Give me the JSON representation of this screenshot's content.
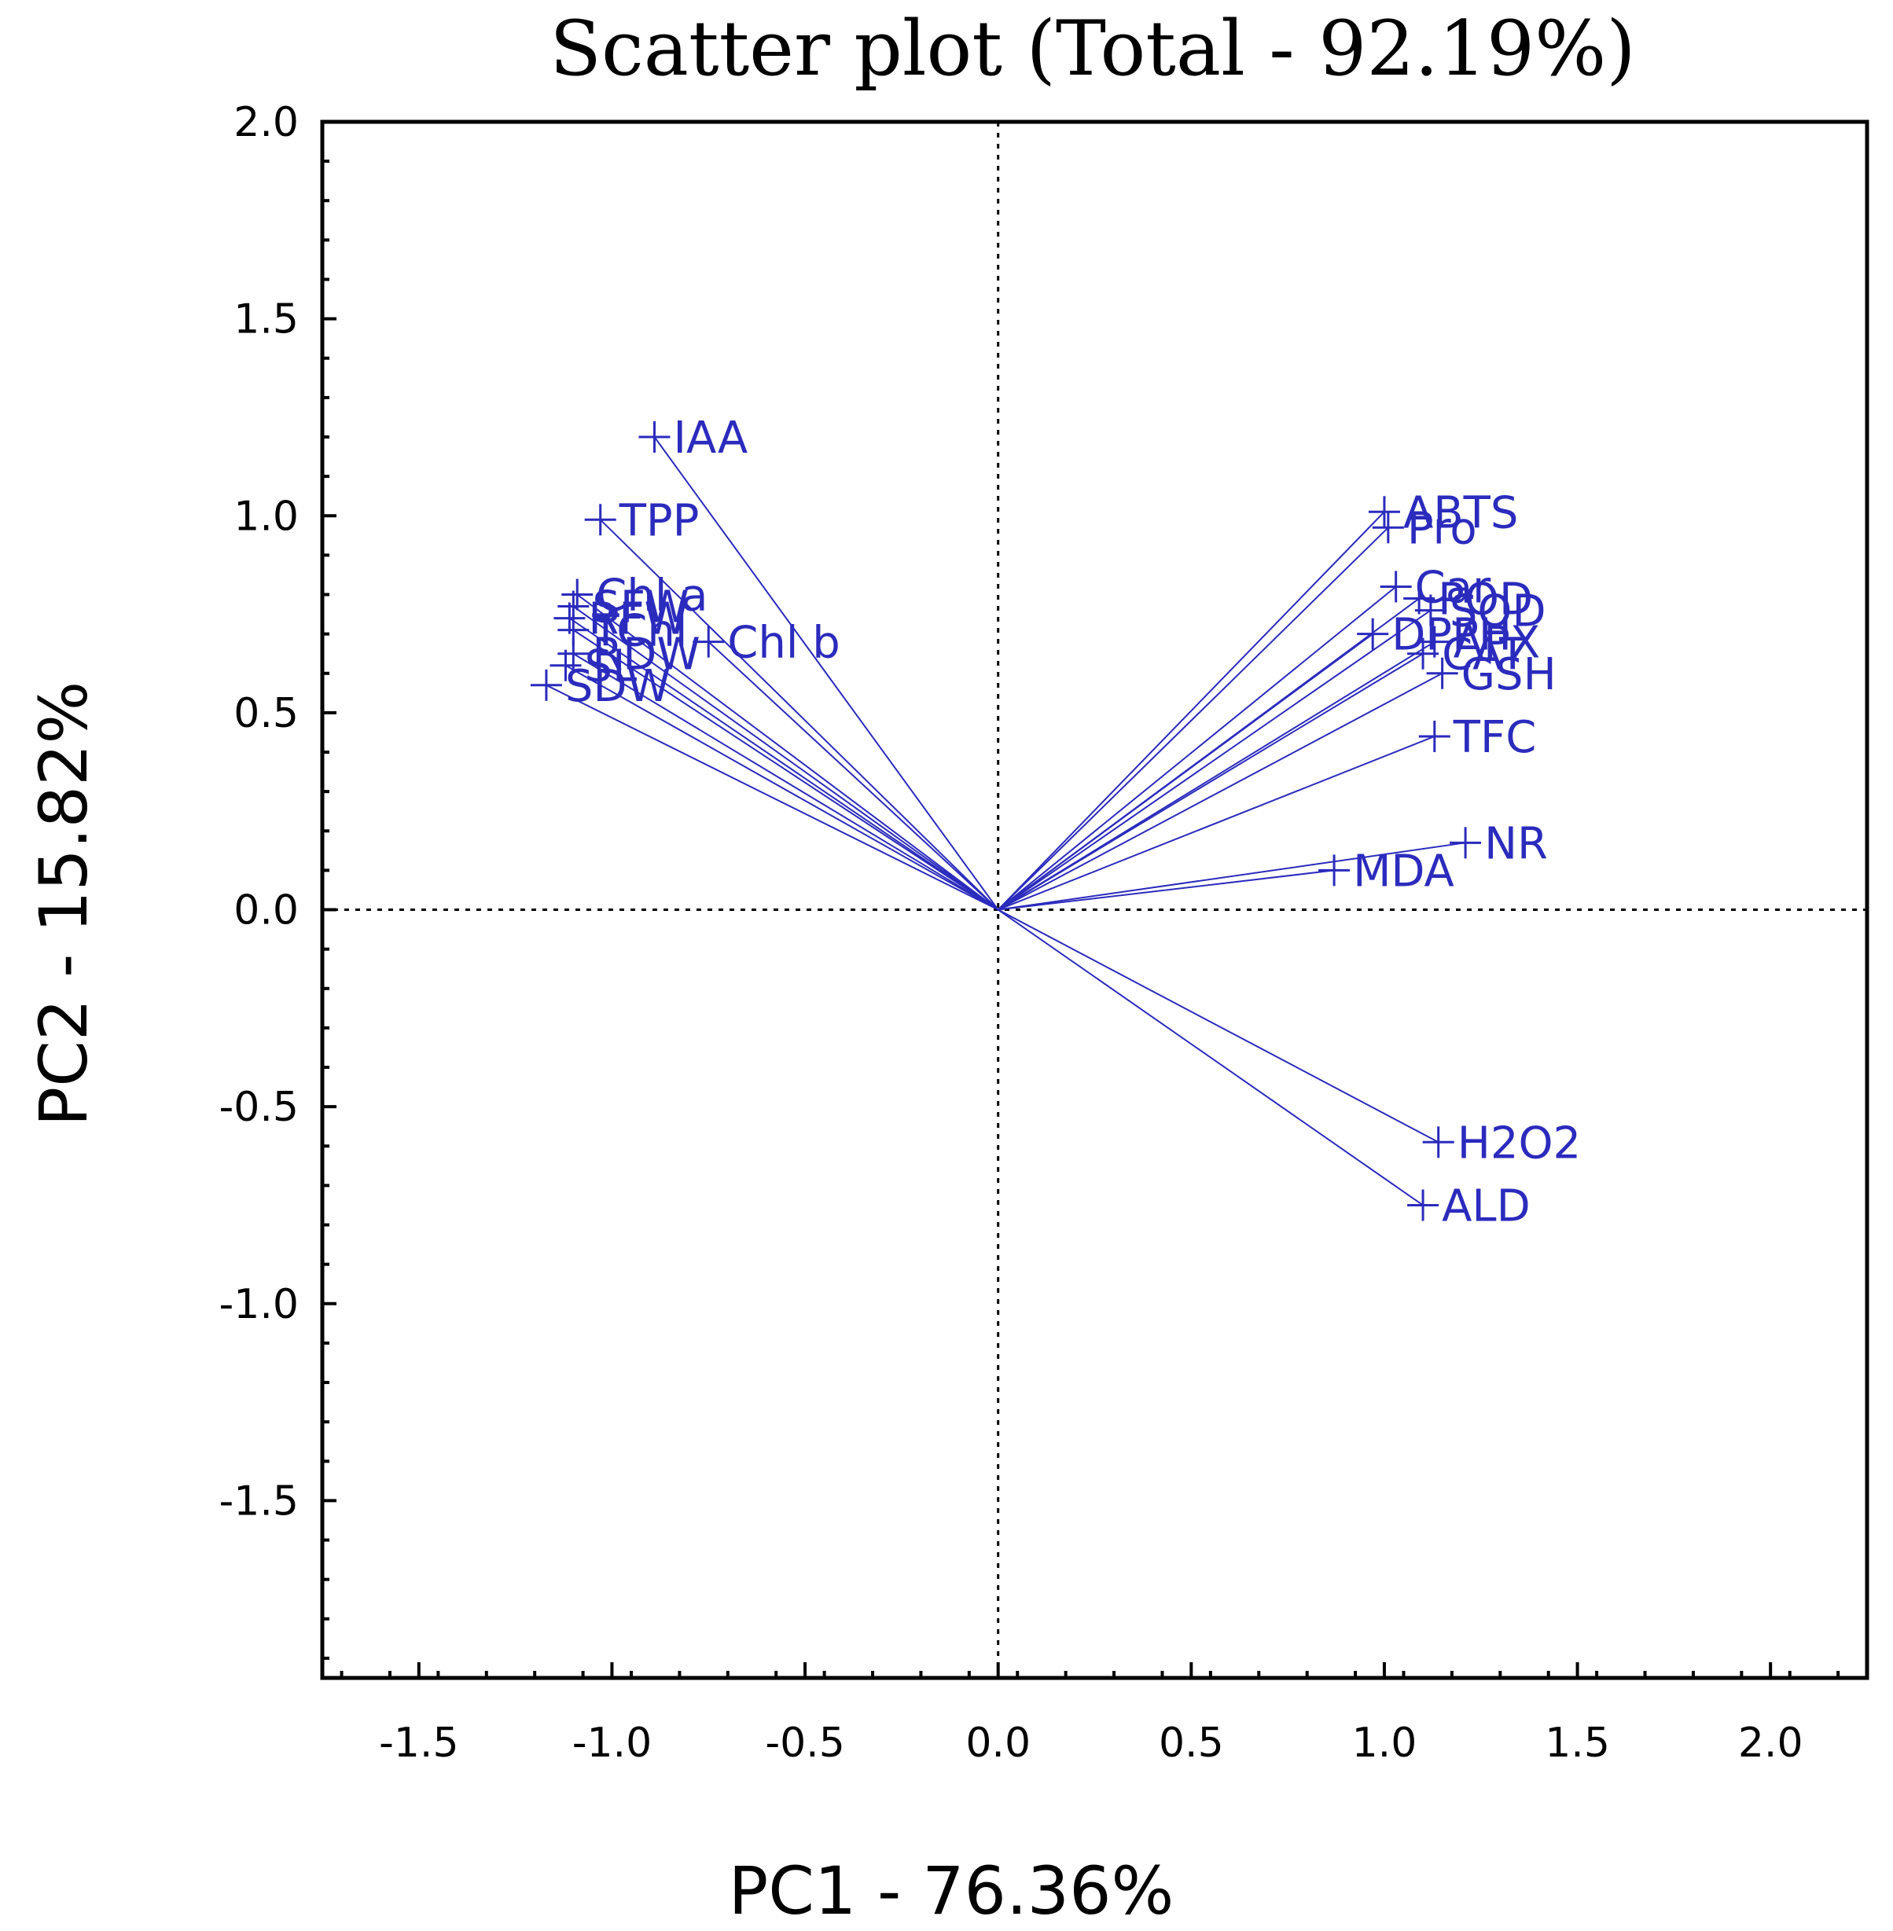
{
  "chart_data": {
    "type": "scatter",
    "title": "Scatter plot (Total - 92.19%)",
    "xlabel": "PC1 - 76.36%",
    "ylabel": "PC2 - 15.82%",
    "xlim": [
      -1.75,
      2.25
    ],
    "ylim": [
      -1.95,
      2.0
    ],
    "xticks": [
      -1.5,
      -1.0,
      -0.5,
      0.0,
      0.5,
      1.0,
      1.5,
      2.0
    ],
    "yticks": [
      -1.5,
      -1.0,
      -0.5,
      0.0,
      0.5,
      1.0,
      1.5,
      2.0
    ],
    "xtick_labels": [
      "-1.5",
      "-1.0",
      "-0.5",
      "0.0",
      "0.5",
      "1.0",
      "1.5",
      "2.0"
    ],
    "ytick_labels": [
      "-1.5",
      "-1.0",
      "-0.5",
      "0.0",
      "0.5",
      "1.0",
      "1.5",
      "2.0"
    ],
    "reference_lines": {
      "x": 0.0,
      "y": 0.0,
      "style": "dotted"
    },
    "series_color": "#2b2bbd",
    "points": [
      {
        "label": "IAA",
        "x": -0.89,
        "y": 1.2
      },
      {
        "label": "TPP",
        "x": -1.03,
        "y": 0.99
      },
      {
        "label": "Chl b",
        "x": -0.75,
        "y": 0.68
      },
      {
        "label": "Chl a",
        "x": -1.09,
        "y": 0.8
      },
      {
        "label": "SFW",
        "x": -1.1,
        "y": 0.77
      },
      {
        "label": "RFW",
        "x": -1.11,
        "y": 0.74
      },
      {
        "label": "TChl",
        "x": -1.1,
        "y": 0.71
      },
      {
        "label": "RDW",
        "x": -1.1,
        "y": 0.65
      },
      {
        "label": "SL",
        "x": -1.12,
        "y": 0.62
      },
      {
        "label": "SDW",
        "x": -1.17,
        "y": 0.57
      },
      {
        "label": "ABTS",
        "x": 1.0,
        "y": 1.01
      },
      {
        "label": "Pro",
        "x": 1.01,
        "y": 0.97
      },
      {
        "label": "Car",
        "x": 1.03,
        "y": 0.82
      },
      {
        "label": "POD",
        "x": 1.09,
        "y": 0.79
      },
      {
        "label": "SOD",
        "x": 1.12,
        "y": 0.76
      },
      {
        "label": "DPPH",
        "x": 0.97,
        "y": 0.7
      },
      {
        "label": "APX",
        "x": 1.13,
        "y": 0.68
      },
      {
        "label": "CAT",
        "x": 1.1,
        "y": 0.65
      },
      {
        "label": "GSH",
        "x": 1.15,
        "y": 0.6
      },
      {
        "label": "TFC",
        "x": 1.13,
        "y": 0.44
      },
      {
        "label": "NR",
        "x": 1.21,
        "y": 0.17
      },
      {
        "label": "MDA",
        "x": 0.87,
        "y": 0.1
      },
      {
        "label": "H2O2",
        "x": 1.14,
        "y": -0.59
      },
      {
        "label": "ALD",
        "x": 1.1,
        "y": -0.75
      }
    ]
  }
}
